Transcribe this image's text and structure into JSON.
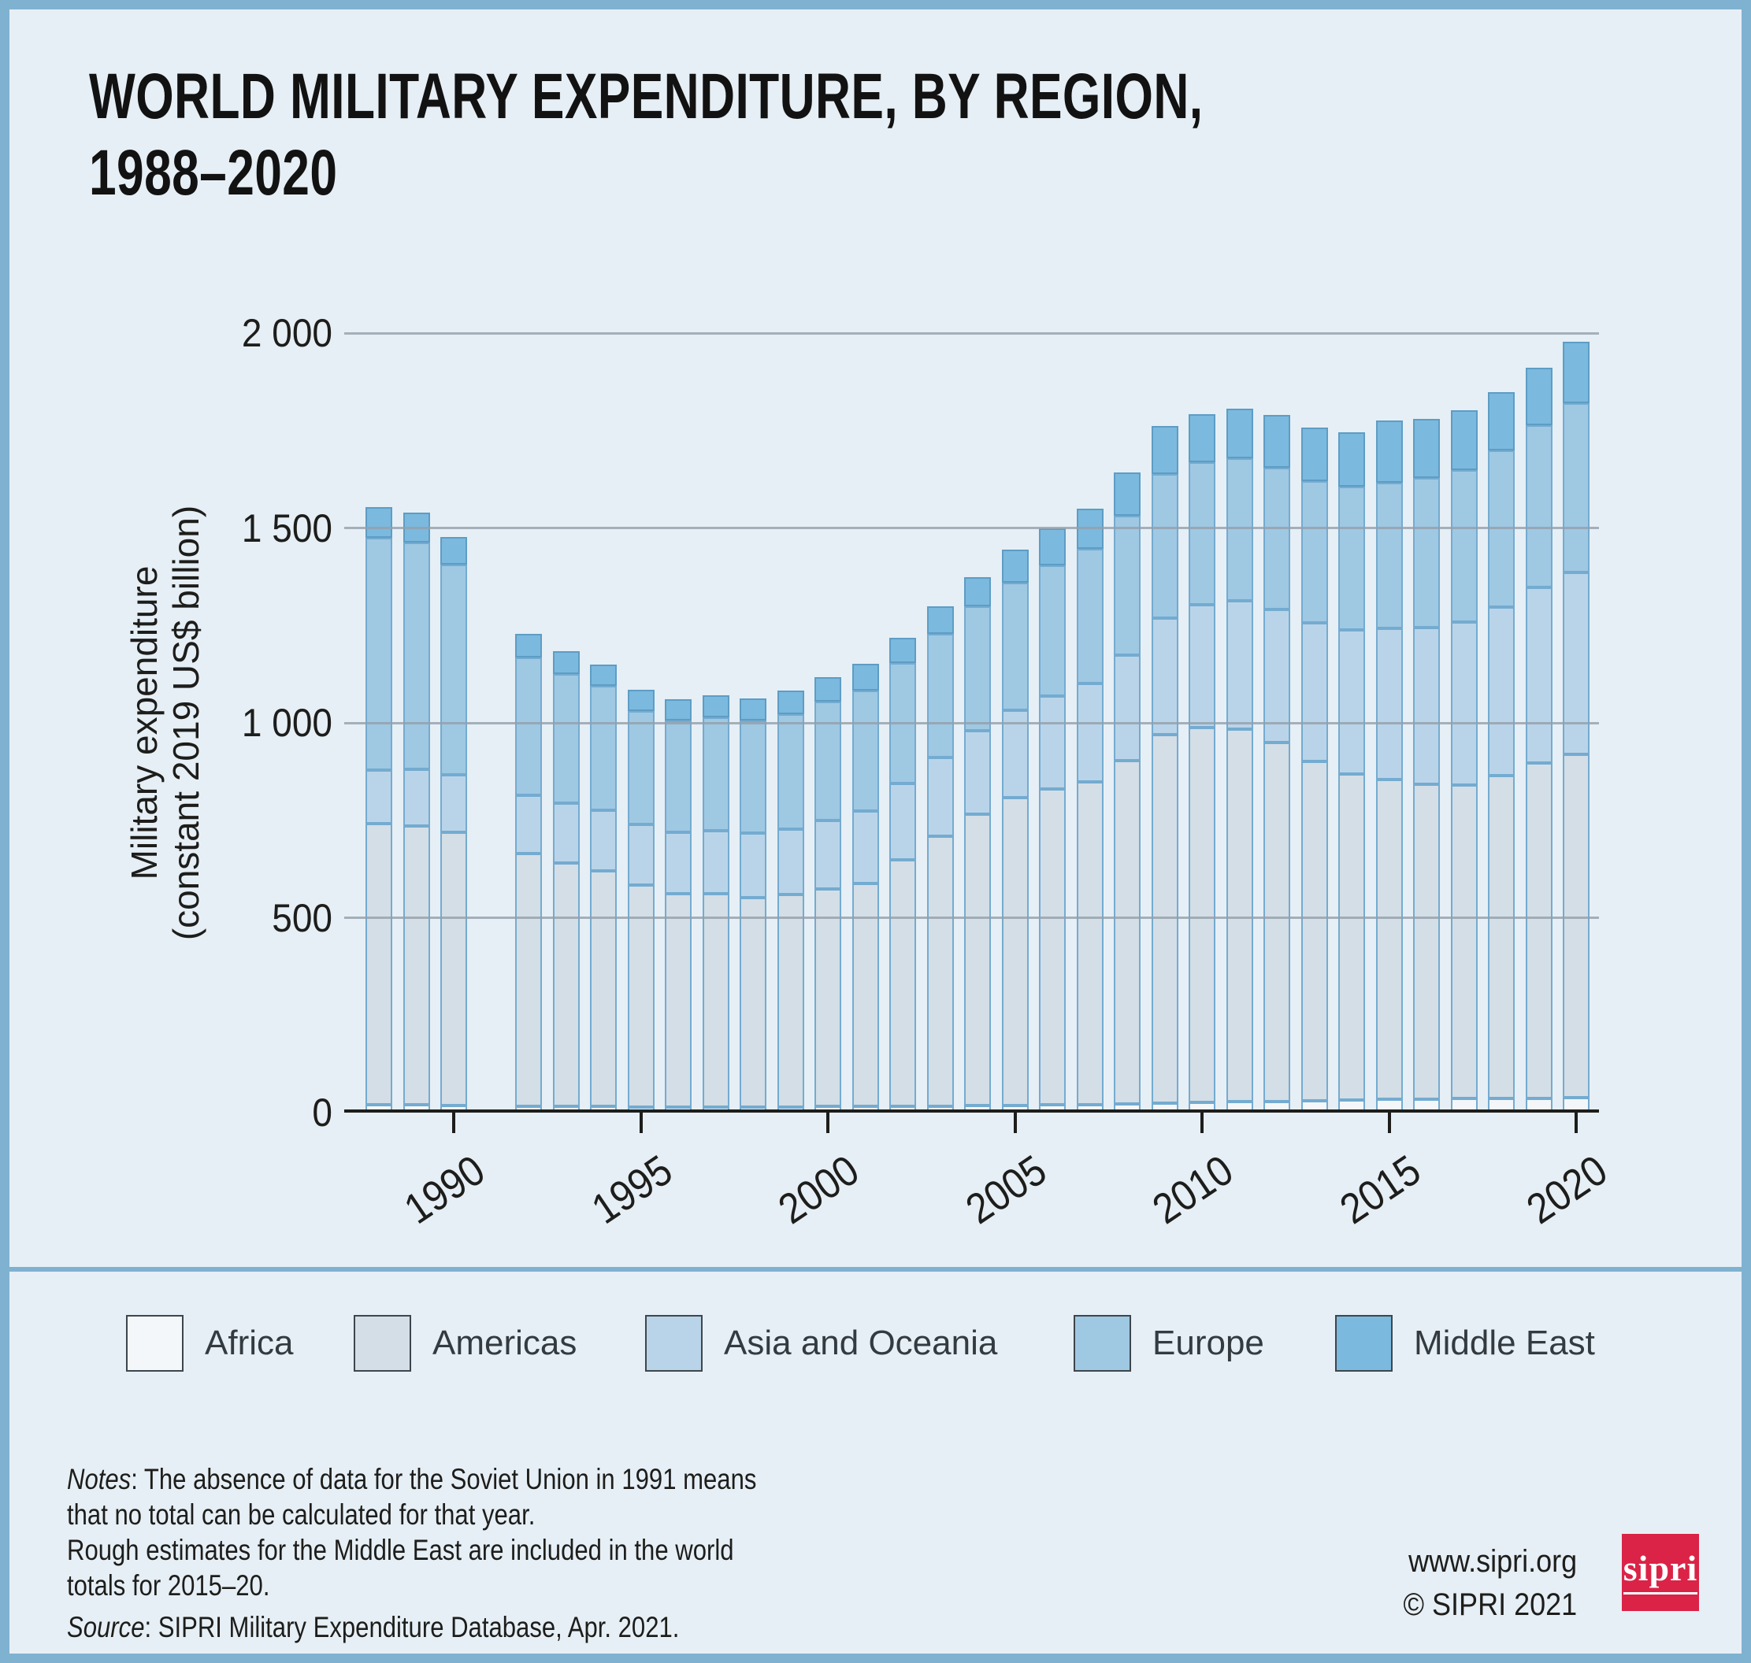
{
  "title": {
    "line1": "WORLD MILITARY EXPENDITURE, BY REGION,",
    "line2": "1988–2020"
  },
  "frame": {
    "border_color": "#7fb2d1",
    "background": "#e6eff5"
  },
  "chart_data": {
    "type": "bar",
    "stacked": true,
    "title": "World military expenditure, by region, 1988–2020",
    "xlabel": "",
    "ylabel_lines": [
      "Military expenditure",
      "(constant 2019 US$ billion)"
    ],
    "unit": "constant 2019 US$ billion",
    "ylim": [
      0,
      2000
    ],
    "grid": true,
    "y_ticks": [
      {
        "value": 0,
        "label": "0"
      },
      {
        "value": 500,
        "label": "500"
      },
      {
        "value": 1000,
        "label": "1 000"
      },
      {
        "value": 1500,
        "label": "1 500"
      },
      {
        "value": 2000,
        "label": "2 000"
      }
    ],
    "x_ticks": [
      {
        "year": 1990,
        "label": "1990"
      },
      {
        "year": 1995,
        "label": "1995"
      },
      {
        "year": 2000,
        "label": "2000"
      },
      {
        "year": 2005,
        "label": "2005"
      },
      {
        "year": 2010,
        "label": "2010"
      },
      {
        "year": 2015,
        "label": "2015"
      },
      {
        "year": 2020,
        "label": "2020"
      }
    ],
    "legend_position": "bottom",
    "regions": [
      {
        "key": "africa",
        "label": "Africa",
        "fill": "#f3f7f9",
        "border": "#74abd0"
      },
      {
        "key": "americas",
        "label": "Americas",
        "fill": "#d4dee6",
        "border": "#74abd0"
      },
      {
        "key": "asia_oceania",
        "label": "Asia and Oceania",
        "fill": "#b9d4e9",
        "border": "#74abd0"
      },
      {
        "key": "europe",
        "label": "Europe",
        "fill": "#9fc8e3",
        "border": "#74abd0"
      },
      {
        "key": "middle_east",
        "label": "Middle East",
        "fill": "#7cb9de",
        "border": "#5d9dc5"
      }
    ],
    "value_order": [
      "africa",
      "americas",
      "asia_oceania",
      "europe",
      "middle_east"
    ],
    "years": [
      {
        "year": 1988,
        "values": [
          16,
          722,
          136,
          596,
          80
        ]
      },
      {
        "year": 1989,
        "values": [
          16,
          715,
          146,
          582,
          76
        ]
      },
      {
        "year": 1990,
        "values": [
          15,
          700,
          148,
          540,
          70
        ]
      },
      {
        "year": 1991,
        "values": null
      },
      {
        "year": 1992,
        "values": [
          13,
          648,
          150,
          352,
          62
        ]
      },
      {
        "year": 1993,
        "values": [
          12,
          625,
          152,
          333,
          58
        ]
      },
      {
        "year": 1994,
        "values": [
          12,
          605,
          154,
          320,
          55
        ]
      },
      {
        "year": 1995,
        "values": [
          11,
          568,
          156,
          292,
          53
        ]
      },
      {
        "year": 1996,
        "values": [
          11,
          546,
          158,
          288,
          53
        ]
      },
      {
        "year": 1997,
        "values": [
          11,
          546,
          162,
          291,
          57
        ]
      },
      {
        "year": 1998,
        "values": [
          10,
          538,
          165,
          289,
          57
        ]
      },
      {
        "year": 1999,
        "values": [
          11,
          544,
          169,
          295,
          59
        ]
      },
      {
        "year": 2000,
        "values": [
          12,
          558,
          175,
          305,
          64
        ]
      },
      {
        "year": 2001,
        "values": [
          12,
          572,
          185,
          310,
          68
        ]
      },
      {
        "year": 2002,
        "values": [
          13,
          632,
          195,
          310,
          65
        ]
      },
      {
        "year": 2003,
        "values": [
          13,
          692,
          203,
          316,
          70
        ]
      },
      {
        "year": 2004,
        "values": [
          14,
          748,
          213,
          320,
          75
        ]
      },
      {
        "year": 2005,
        "values": [
          15,
          790,
          224,
          326,
          85
        ]
      },
      {
        "year": 2006,
        "values": [
          16,
          810,
          238,
          336,
          94
        ]
      },
      {
        "year": 2007,
        "values": [
          17,
          828,
          252,
          346,
          103
        ]
      },
      {
        "year": 2008,
        "values": [
          19,
          880,
          270,
          358,
          111
        ]
      },
      {
        "year": 2009,
        "values": [
          21,
          944,
          300,
          370,
          122
        ]
      },
      {
        "year": 2010,
        "values": [
          23,
          960,
          315,
          367,
          123
        ]
      },
      {
        "year": 2011,
        "values": [
          24,
          956,
          330,
          365,
          127
        ]
      },
      {
        "year": 2012,
        "values": [
          25,
          920,
          342,
          363,
          136
        ]
      },
      {
        "year": 2013,
        "values": [
          27,
          870,
          356,
          363,
          137
        ]
      },
      {
        "year": 2014,
        "values": [
          29,
          836,
          370,
          367,
          139
        ]
      },
      {
        "year": 2015,
        "values": [
          31,
          820,
          388,
          373,
          159
        ]
      },
      {
        "year": 2016,
        "values": [
          31,
          808,
          402,
          383,
          151
        ]
      },
      {
        "year": 2017,
        "values": [
          32,
          804,
          418,
          391,
          153
        ]
      },
      {
        "year": 2018,
        "values": [
          32,
          828,
          433,
          401,
          151
        ]
      },
      {
        "year": 2019,
        "values": [
          33,
          860,
          450,
          417,
          148
        ]
      },
      {
        "year": 2020,
        "values": [
          34,
          882,
          465,
          435,
          157
        ]
      }
    ]
  },
  "notes": {
    "lines": [
      {
        "prefix": "Notes",
        "sep": ": ",
        "text": "The absence of data for the Soviet Union in 1991 means"
      },
      {
        "prefix": "",
        "sep": "",
        "text": "that no total can be calculated for that year."
      },
      {
        "prefix": "",
        "sep": "",
        "text": "Rough estimates for the Middle East are included in the world"
      },
      {
        "prefix": "",
        "sep": "",
        "text": "totals for 2015–20."
      }
    ]
  },
  "source": {
    "prefix": "Source",
    "sep": ": ",
    "text": "SIPRI Military Expenditure Database, Apr. 2021."
  },
  "footer": {
    "website": "www.sipri.org",
    "copyright": "© SIPRI 2021",
    "logo_text": "sipri",
    "logo_color": "#da2347"
  }
}
